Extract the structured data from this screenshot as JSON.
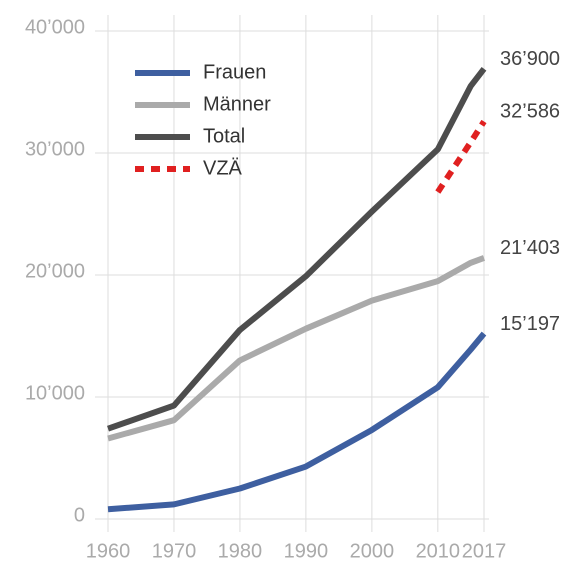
{
  "chart_data": {
    "type": "line",
    "x": [
      1960,
      1970,
      1980,
      1990,
      2000,
      2010,
      2015,
      2017
    ],
    "series": [
      {
        "name": "Frauen",
        "color": "#3e5fa0",
        "style": "solid",
        "values": [
          800,
          1200,
          2500,
          4300,
          7300,
          10800,
          13900,
          15197
        ],
        "value_labels": [
          null,
          null,
          null,
          null,
          null,
          null,
          null,
          "15’197"
        ]
      },
      {
        "name": "Männer",
        "color": "#aaaaaa",
        "style": "solid",
        "values": [
          6600,
          8100,
          13000,
          15600,
          17900,
          19500,
          21000,
          21403
        ],
        "value_labels": [
          null,
          null,
          null,
          null,
          null,
          null,
          null,
          "21’403"
        ]
      },
      {
        "name": "Total",
        "color": "#4d4d4d",
        "style": "solid",
        "values": [
          7400,
          9300,
          15500,
          19900,
          25200,
          30300,
          35500,
          36900
        ],
        "value_labels": [
          null,
          null,
          null,
          null,
          null,
          null,
          null,
          "36’900"
        ]
      },
      {
        "name": "VZÄ",
        "color": "#e02020",
        "style": "dashed",
        "values": [
          null,
          null,
          null,
          null,
          null,
          26800,
          30900,
          32586
        ],
        "value_labels": [
          null,
          null,
          null,
          null,
          null,
          null,
          null,
          "32’586"
        ]
      }
    ],
    "xlim": [
      1960,
      2017
    ],
    "xticks": [
      1960,
      1970,
      1980,
      1990,
      2000,
      2010,
      2017
    ],
    "ylim": [
      0,
      40000
    ],
    "yticks": [
      0,
      {
        "value": 10000,
        "label": "10’000"
      },
      {
        "value": 20000,
        "label": "20’000"
      },
      {
        "value": 30000,
        "label": "30’000"
      },
      {
        "value": 40000,
        "label": "40’000"
      }
    ],
    "grid": true,
    "legend": "top-left"
  }
}
